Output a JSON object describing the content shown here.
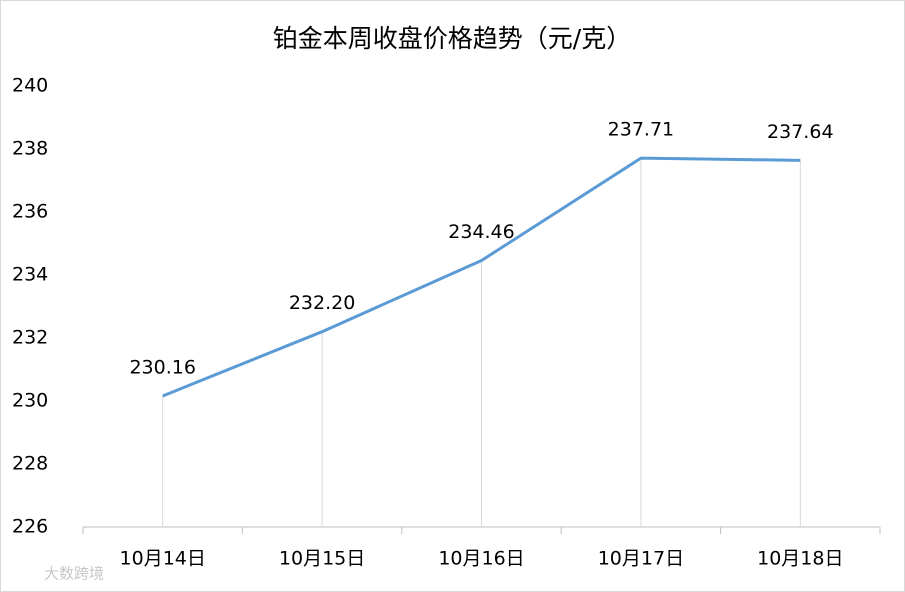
{
  "chart_data": {
    "type": "line",
    "title": "铂金本周收盘价格趋势（元/克）",
    "categories": [
      "10月14日",
      "10月15日",
      "10月16日",
      "10月17日",
      "10月18日"
    ],
    "series": [
      {
        "color": "#5b9bd5",
        "values": [
          230.16,
          232.2,
          234.46,
          237.71,
          237.64
        ],
        "value_labels": [
          "230.16",
          "232.20",
          "234.46",
          "237.71",
          "237.64"
        ]
      }
    ],
    "ylim": [
      226,
      240
    ],
    "yticks": [
      226,
      228,
      230,
      232,
      234,
      236,
      238,
      240
    ],
    "drop_lines": true,
    "grid": false,
    "watermark": "大数跨境"
  }
}
